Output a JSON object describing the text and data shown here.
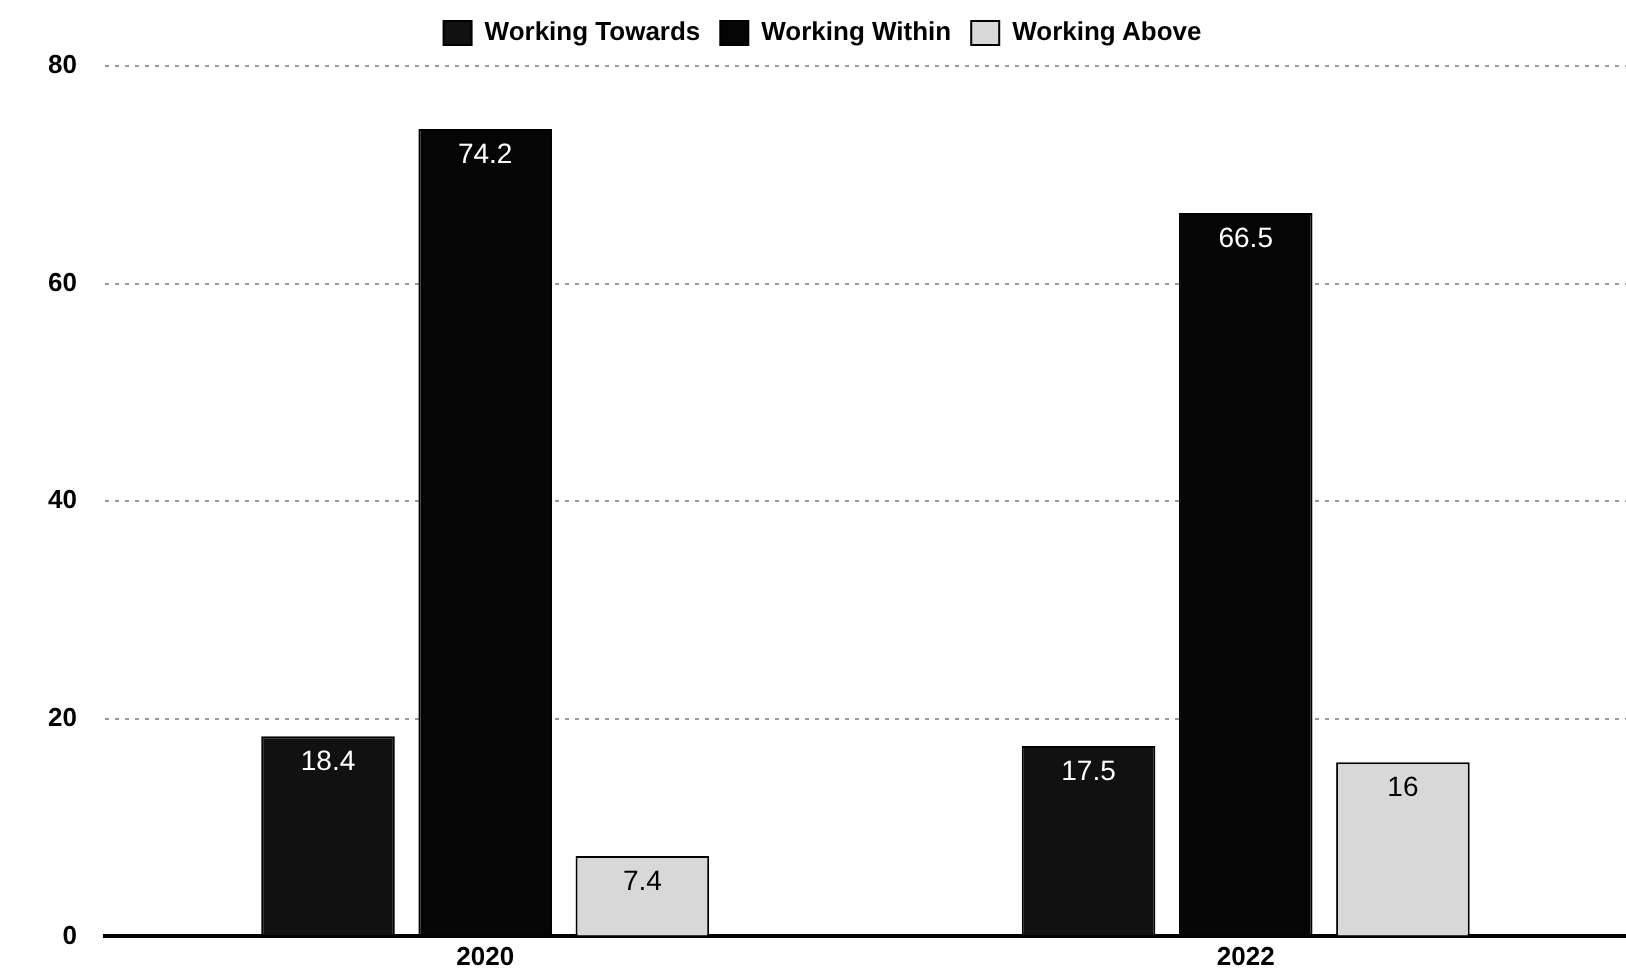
{
  "chart_data": {
    "type": "bar",
    "categories": [
      "2020",
      "2022"
    ],
    "series": [
      {
        "name": "Working Towards",
        "color": "#111111",
        "values": [
          18.4,
          17.5
        ]
      },
      {
        "name": "Working Within",
        "color": "#050505",
        "values": [
          74.2,
          66.5
        ]
      },
      {
        "name": "Working Above",
        "color": "#d8d8d8",
        "values": [
          7.4,
          16
        ]
      }
    ],
    "ylim": [
      0,
      80
    ],
    "yticks": [
      0,
      20,
      40,
      60,
      80
    ],
    "grid": "y",
    "legend": "top",
    "data_labels": true
  }
}
